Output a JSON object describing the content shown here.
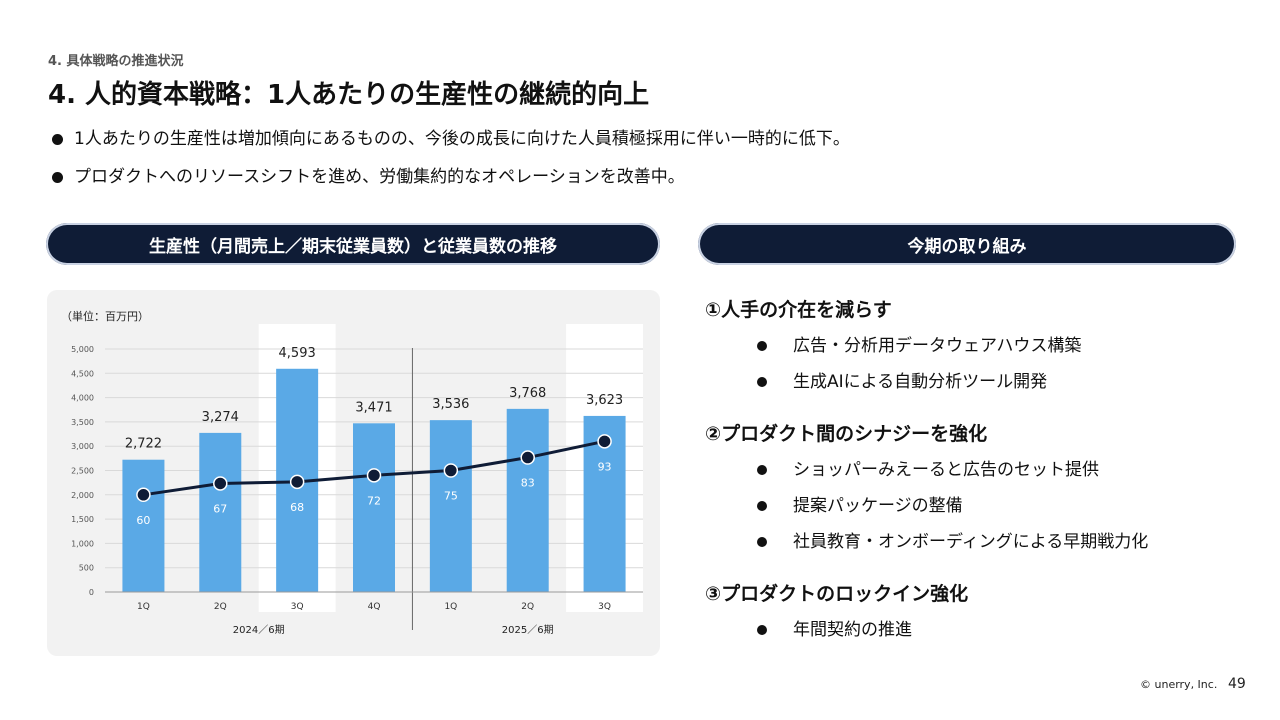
{
  "header": {
    "eyebrow": "4. 具体戦略の推進状況",
    "title": "4. 人的資本戦略：1人あたりの生産性の継続的向上"
  },
  "summary_bullets": [
    "1人あたりの生産性は増加傾向にあるものの、今後の成長に向けた人員積極採用に伴い一時的に低下。",
    "プロダクトへのリソースシフトを進め、労働集約的なオペレーションを改善中。"
  ],
  "left_section": {
    "heading": "生産性（月間売上／期末従業員数）と従業員数の推移"
  },
  "right_section": {
    "heading": "今期の取り組み",
    "groups": [
      {
        "title": "①人手の介在を減らす",
        "items": [
          "広告・分析用データウェアハウス構築",
          "生成AIによる自動分析ツール開発"
        ]
      },
      {
        "title": "②プロダクト間のシナジーを強化",
        "items": [
          "ショッパーみえーると広告のセット提供",
          "提案パッケージの整備",
          "社員教育・オンボーディングによる早期戦力化"
        ]
      },
      {
        "title": "③プロダクトのロックイン強化",
        "items": [
          "年間契約の推進"
        ]
      }
    ]
  },
  "chart_data": {
    "type": "bar",
    "unit_label": "（単位：百万円）",
    "categories": [
      "1Q",
      "2Q",
      "3Q",
      "4Q",
      "1Q",
      "2Q",
      "3Q"
    ],
    "groups": [
      {
        "label": "2024／6期",
        "categories": [
          "1Q",
          "2Q",
          "3Q",
          "4Q"
        ]
      },
      {
        "label": "2025／6期",
        "categories": [
          "1Q",
          "2Q",
          "3Q"
        ]
      }
    ],
    "series": [
      {
        "type": "bar",
        "values": [
          2722,
          3274,
          4593,
          3471,
          3536,
          3768,
          3623
        ],
        "data_labels": [
          "2,722",
          "3,274",
          "4,593",
          "3,471",
          "3,536",
          "3,768",
          "3,623"
        ],
        "color": "#5aa9e6"
      },
      {
        "type": "line",
        "values": [
          60,
          67,
          68,
          72,
          75,
          83,
          93
        ],
        "color": "#0f1c36"
      }
    ],
    "y_ticks": [
      "0",
      "500",
      "1,000",
      "1,500",
      "2,000",
      "2,500",
      "3,000",
      "3,500",
      "4,000",
      "4,500",
      "5,000"
    ],
    "ylim": [
      0,
      5000
    ],
    "line_ylim": [
      0,
      150
    ],
    "highlighted_categories": [
      2,
      6
    ],
    "grid": true
  },
  "footer": {
    "copyright": "© unerry, Inc.",
    "page_number": "49"
  }
}
